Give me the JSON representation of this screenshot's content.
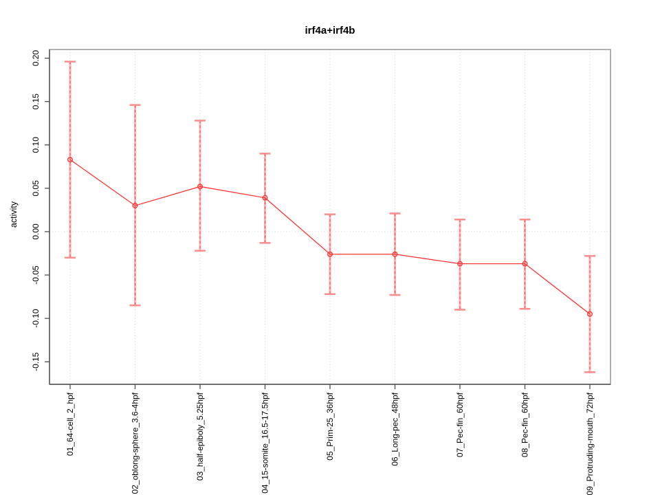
{
  "page": {
    "background": "#ffffff"
  },
  "chart_data": {
    "type": "line",
    "title": "irf4a+irf4b",
    "xlabel": "",
    "ylabel": "activity",
    "categories": [
      "01_64-cell_2_hpf",
      "02_oblong-sphere_3.6-4hpf",
      "03_half-epiboly_5.25hpf",
      "04_15-somite_16.5-17.5hpf",
      "05_Prim-25_36hpf",
      "06_Long-pec_48hpf",
      "07_Pec-fin_60hpf",
      "08_Pec-fin_60hpf",
      "09_Protruding-mouth_72hpf"
    ],
    "series": [
      {
        "name": "irf4a+irf4b activity",
        "values": [
          0.083,
          0.03,
          0.052,
          0.039,
          -0.026,
          -0.026,
          -0.037,
          -0.037,
          -0.095
        ],
        "upper": [
          0.196,
          0.146,
          0.128,
          0.09,
          0.02,
          0.021,
          0.014,
          0.014,
          -0.028
        ],
        "lower": [
          -0.03,
          -0.085,
          -0.022,
          -0.013,
          -0.072,
          -0.073,
          -0.09,
          -0.089,
          -0.162
        ]
      }
    ],
    "ylim": [
      -0.176,
      0.21
    ],
    "yticks": [
      -0.15,
      -0.1,
      -0.05,
      0.0,
      0.05,
      0.1,
      0.15,
      0.2
    ],
    "ytick_format_decimals": 2,
    "grid": {
      "vertical_per_category": true,
      "horizontal_at_zero": true,
      "style": "dotted"
    },
    "legend": {
      "visible": false
    },
    "marker": "open-circle",
    "colors": {
      "series_line": "#ff3333",
      "marker_stroke": "#ff3333",
      "error_bar": "#ffb3b3",
      "error_bar_cap": "#ff8f8f",
      "error_bar_dash": "#ff4444",
      "grid": "#dcdcdc",
      "box": "#919191",
      "axis": "#4d4d4d",
      "text": "#000000"
    }
  }
}
